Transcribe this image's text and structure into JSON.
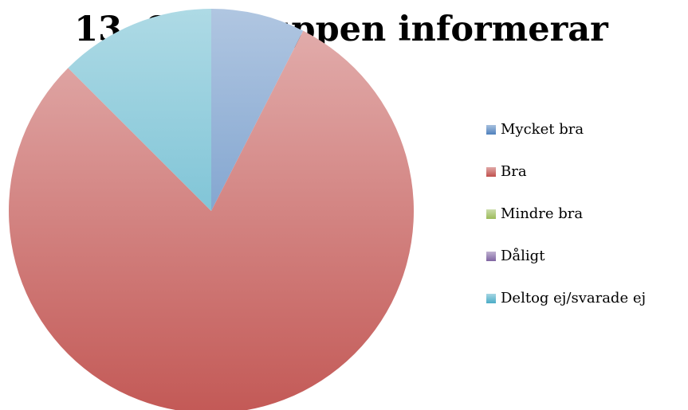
{
  "chart_data": {
    "type": "pie",
    "title": "13. Styrgruppen informerar",
    "categories": [
      "Mycket bra",
      "Bra",
      "Mindre bra",
      "Dåligt",
      "Deltog ej/svarade ej"
    ],
    "values": [
      7.5,
      80,
      0,
      0,
      12.5
    ],
    "colors": [
      "#4f81bd",
      "#c0504d",
      "#9bbb59",
      "#8064a2",
      "#4bacc6"
    ],
    "legend": "right"
  }
}
